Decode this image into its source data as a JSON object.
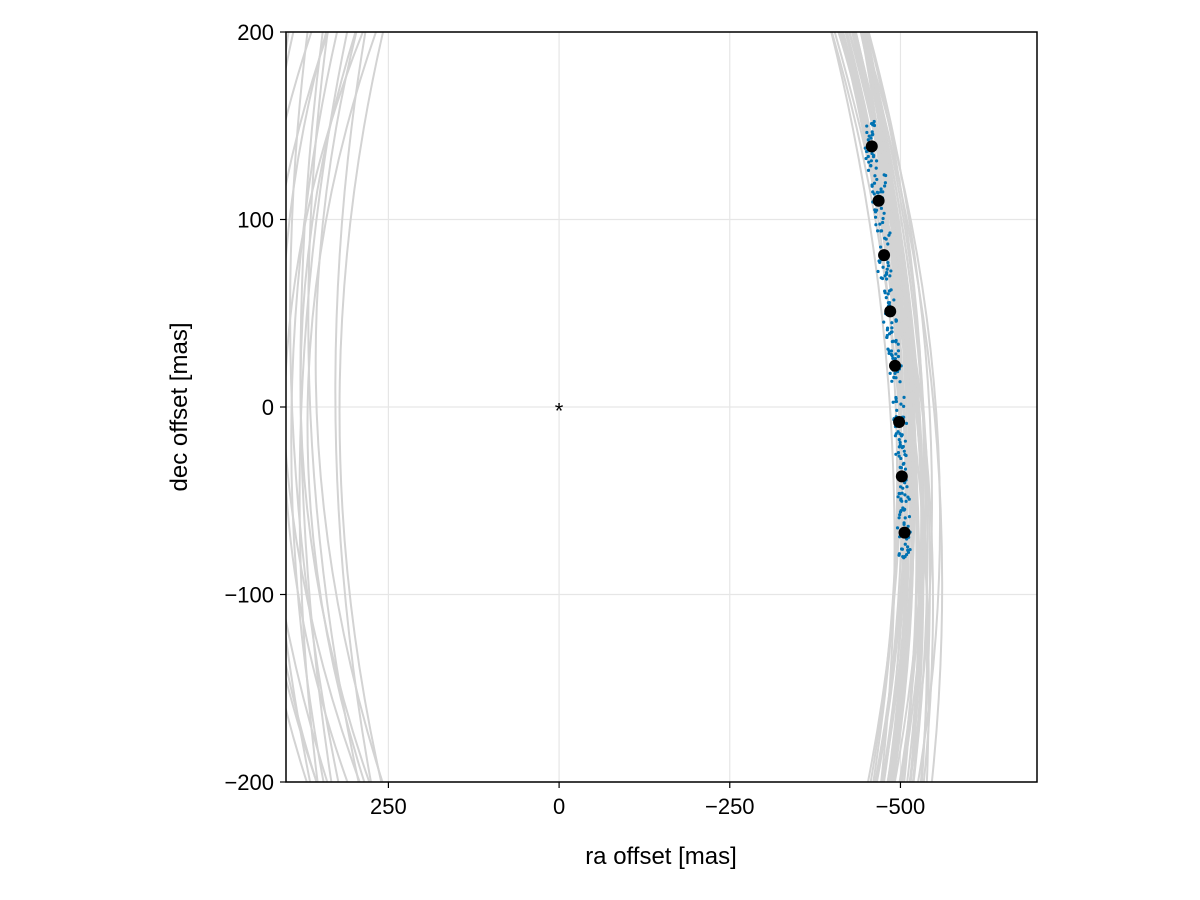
{
  "chart_data": {
    "type": "scatter",
    "xlabel": "ra offset [mas]",
    "ylabel": "dec offset [mas]",
    "xlim": [
      400,
      -700
    ],
    "ylim": [
      -200,
      200
    ],
    "x_inverted": true,
    "grid": true,
    "legend": "none",
    "xticks": [
      {
        "value": 250,
        "label": "250"
      },
      {
        "value": 0,
        "label": "0"
      },
      {
        "value": -250,
        "label": "−250"
      },
      {
        "value": -500,
        "label": "−500"
      }
    ],
    "yticks": [
      {
        "value": 200,
        "label": "200"
      },
      {
        "value": 100,
        "label": "100"
      },
      {
        "value": 0,
        "label": "0"
      },
      {
        "value": -100,
        "label": "−100"
      },
      {
        "value": -200,
        "label": "−200"
      }
    ],
    "colors": {
      "orbit": "#d3d3d3",
      "samples": "#0072b2",
      "observed": "#000000",
      "star": "#000000",
      "grid": "#e6e6e6"
    },
    "star": {
      "x": 0,
      "y": 0,
      "marker": "*"
    },
    "observed_points": [
      {
        "x": -458,
        "y": 139
      },
      {
        "x": -468,
        "y": 110
      },
      {
        "x": -476,
        "y": 81
      },
      {
        "x": -485,
        "y": 51
      },
      {
        "x": -492,
        "y": 22
      },
      {
        "x": -498,
        "y": -8
      },
      {
        "x": -502,
        "y": -37
      },
      {
        "x": -506,
        "y": -67
      }
    ],
    "posterior_orbits": {
      "description_count": 40,
      "near_track": {
        "x_at_top": [
          -395,
          -450
        ],
        "x_at_bottom": [
          -440,
          -545
        ]
      },
      "far_tracks": {
        "x_range_left_edge": [
          400,
          220
        ]
      }
    }
  }
}
